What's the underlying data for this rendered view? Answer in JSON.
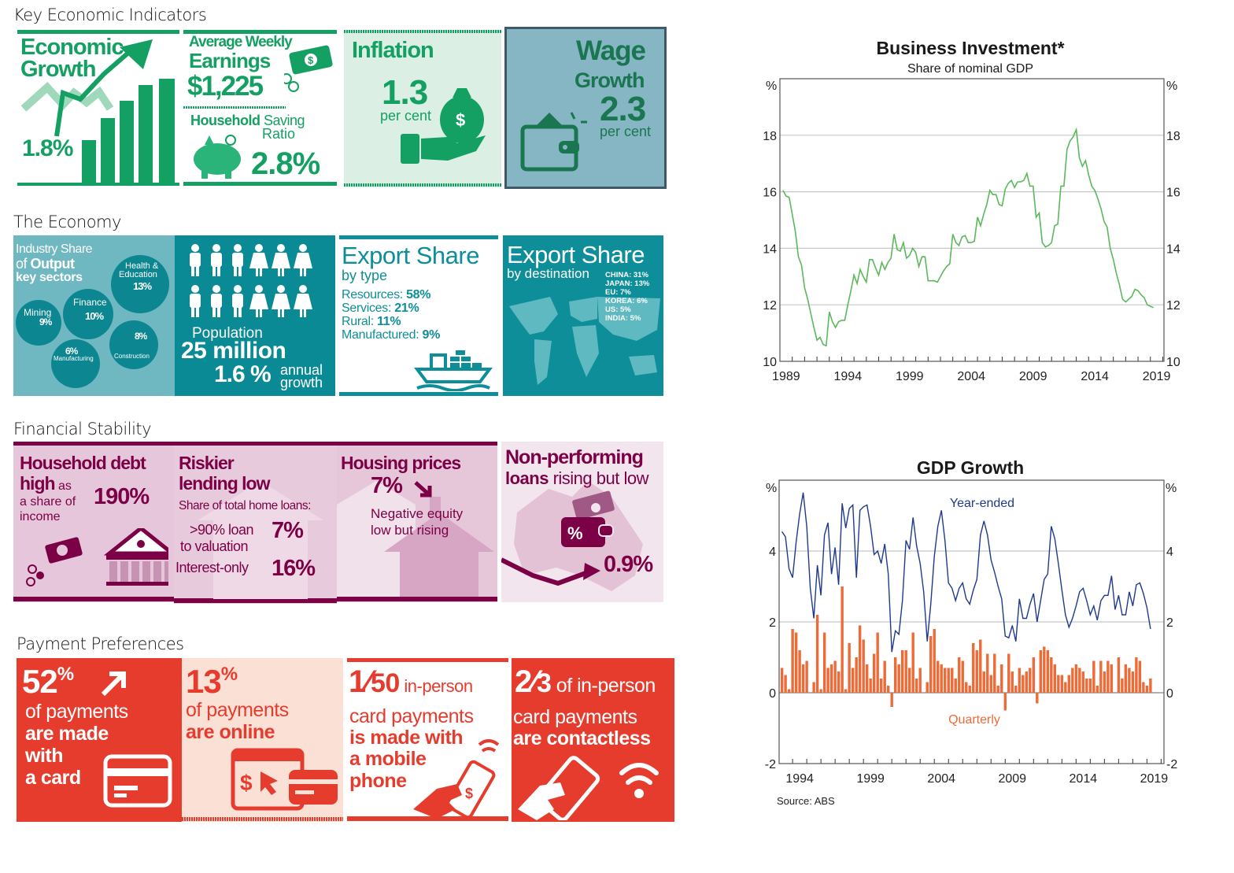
{
  "sections": {
    "key_indicators": "Key Economic Indicators",
    "economy": "The Economy",
    "financial_stability": "Financial Stability",
    "payment_preferences": "Payment Preferences"
  },
  "colors": {
    "green": "#14a062",
    "teal": "#0e8e98",
    "plum": "#7b0046",
    "red": "#e63c2e",
    "investment_line": "#5cb85c",
    "year_ended_line": "#1f3a8a",
    "quarterly_bars": "#ee6a37"
  },
  "key_indicators": {
    "growth": {
      "title1": "Economic",
      "title2": "Growth",
      "value": "1.8%"
    },
    "earnings": {
      "title1": "Average Weekly",
      "title2": "Earnings",
      "value": "$1,225",
      "saving_bold": "Household",
      "saving_rest": "Saving",
      "saving_line2": "Ratio",
      "saving_value": "2.8%"
    },
    "inflation": {
      "title": "Inflation",
      "value": "1.3",
      "unit": "per cent"
    },
    "wage": {
      "title1": "Wage",
      "title2": "Growth",
      "value": "2.3",
      "unit": "per cent"
    }
  },
  "economy": {
    "industry": {
      "line1": "Industry Share",
      "line2_pre": "of ",
      "line2_bold": "Output",
      "line3": "key sectors",
      "sectors": [
        {
          "name": "Health & Education",
          "name1": "Health &",
          "name2": "Education",
          "value": "13%"
        },
        {
          "name": "Finance",
          "value": "10%"
        },
        {
          "name": "Mining",
          "value": "9%"
        },
        {
          "name": "Construction",
          "value": "8%"
        },
        {
          "name": "Manufacturing",
          "value": "6%"
        }
      ]
    },
    "population": {
      "label": "Population",
      "value": "25 million",
      "growth": "1.6 %",
      "growth_label1": "annual",
      "growth_label2": "growth"
    },
    "export_type": {
      "title": "Export Share",
      "subtitle": "by type",
      "items": [
        {
          "label": "Resources: ",
          "value": "58%"
        },
        {
          "label": "Services: ",
          "value": "21%"
        },
        {
          "label": "Rural: ",
          "value": "11%"
        },
        {
          "label": "Manufactured: ",
          "value": "9%"
        }
      ]
    },
    "export_destination": {
      "title": "Export Share",
      "subtitle": "by destination",
      "items": [
        "CHINA: 31%",
        "JAPAN: 13%",
        "EU: 7%",
        "KOREA: 6%",
        "US: 5%",
        "INDIA: 5%"
      ]
    }
  },
  "financial": {
    "debt": {
      "line1": "Household debt",
      "line2_bold": "high",
      "line2_rest": " as",
      "line3": "a share of",
      "line4": "income",
      "value": "190%"
    },
    "lending": {
      "line1": "Riskier",
      "line2": "lending low",
      "sub": "Share of total home loans:",
      "item1_a": ">90% loan",
      "item1_b": "to valuation",
      "item1_value": "7%",
      "item2": "Interest-only",
      "item2_value": "16%"
    },
    "housing": {
      "title": "Housing prices",
      "value": "7%",
      "line1": "Negative equity",
      "line2": "low but rising"
    },
    "npl": {
      "line1": "Non-performing",
      "line2_bold": "loans",
      "line2_rest": " rising but low",
      "value": "0.9%"
    }
  },
  "payments": {
    "card": {
      "value": "52",
      "pct": "%",
      "line1": "of payments",
      "line2": "are made",
      "line3": "with",
      "line4": "a card"
    },
    "online": {
      "value": "13",
      "pct": "%",
      "line1": "of payments",
      "line2": "are online"
    },
    "mobile": {
      "num": "1",
      "den": "50",
      "rest": " in-person",
      "line2": "card payments",
      "line3": "is made with",
      "line4": "a mobile",
      "line5": "phone"
    },
    "contactless": {
      "num": "2",
      "den": "3",
      "rest": " of in-person",
      "line2": "card payments",
      "line3": "are contactless"
    }
  },
  "chart_data": [
    {
      "type": "line",
      "title": "Business Investment*",
      "subtitle": "Share of nominal GDP",
      "ylabel_left": "%",
      "ylabel_right": "%",
      "ylim": [
        10,
        20
      ],
      "xlim": [
        1989,
        2020.1
      ],
      "yticks": [
        10,
        12,
        14,
        16,
        18
      ],
      "xtick_labels": [
        "1989",
        "1994",
        "1999",
        "2004",
        "2009",
        "2014",
        "2019"
      ],
      "grid": true,
      "x": [
        1989.25,
        1989.5,
        1989.75,
        1990,
        1990.25,
        1990.5,
        1990.75,
        1991,
        1991.25,
        1991.5,
        1991.75,
        1992,
        1992.25,
        1992.5,
        1992.75,
        1993,
        1993.25,
        1993.5,
        1993.75,
        1994,
        1994.25,
        1994.5,
        1994.75,
        1995,
        1995.25,
        1995.5,
        1995.75,
        1996,
        1996.25,
        1996.5,
        1996.75,
        1997,
        1997.25,
        1997.5,
        1997.75,
        1998,
        1998.25,
        1998.5,
        1998.75,
        1999,
        1999.25,
        1999.5,
        1999.75,
        2000,
        2000.25,
        2000.5,
        2000.75,
        2001,
        2001.25,
        2001.5,
        2001.75,
        2002,
        2002.25,
        2002.5,
        2002.75,
        2003,
        2003.25,
        2003.5,
        2003.75,
        2004,
        2004.25,
        2004.5,
        2004.75,
        2005,
        2005.25,
        2005.5,
        2005.75,
        2006,
        2006.25,
        2006.5,
        2006.75,
        2007,
        2007.25,
        2007.5,
        2007.75,
        2008,
        2008.25,
        2008.5,
        2008.75,
        2009,
        2009.25,
        2009.5,
        2009.75,
        2010,
        2010.25,
        2010.5,
        2010.75,
        2011,
        2011.25,
        2011.5,
        2011.75,
        2012,
        2012.25,
        2012.5,
        2012.75,
        2013,
        2013.25,
        2013.5,
        2013.75,
        2014,
        2014.25,
        2014.5,
        2014.75,
        2015,
        2015.25,
        2015.5,
        2015.75,
        2016,
        2016.25,
        2016.5,
        2016.75,
        2017,
        2017.25,
        2017.5,
        2017.75,
        2018,
        2018.25,
        2018.5,
        2018.75,
        2019,
        2019.25
      ],
      "values": [
        16.05,
        15.85,
        15.8,
        15.2,
        14.6,
        13.7,
        13.4,
        12.6,
        12.2,
        11.7,
        11.2,
        10.75,
        10.85,
        10.6,
        10.55,
        11.75,
        11.4,
        11.2,
        11.4,
        11.45,
        11.45,
        12.0,
        12.5,
        13.05,
        12.75,
        13.25,
        13.0,
        12.8,
        13.6,
        13.6,
        13.3,
        13.05,
        13.5,
        13.25,
        13.5,
        13.65,
        14.5,
        13.95,
        13.9,
        14.2,
        13.65,
        13.75,
        14.0,
        13.85,
        13.35,
        13.7,
        13.7,
        12.85,
        12.85,
        12.85,
        12.8,
        13.0,
        13.2,
        13.35,
        13.45,
        14.5,
        14.2,
        14.1,
        14.4,
        14.45,
        14.2,
        14.2,
        14.25,
        15.1,
        14.8,
        15.2,
        15.55,
        16.05,
        15.9,
        15.9,
        15.55,
        15.5,
        16.1,
        16.3,
        16.4,
        16.15,
        16.35,
        16.35,
        16.4,
        16.65,
        16.2,
        16.2,
        15.1,
        15.25,
        14.2,
        14.05,
        14.1,
        14.2,
        14.8,
        14.85,
        16.2,
        16.2,
        17.5,
        17.8,
        17.95,
        18.2,
        17.2,
        16.9,
        17.1,
        16.6,
        16.2,
        16.05,
        15.75,
        15.4,
        14.95,
        14.75,
        14.0,
        13.6,
        13.1,
        12.7,
        12.2,
        12.1,
        12.2,
        12.3,
        12.55,
        12.5,
        12.35,
        12.25,
        12.0,
        11.95,
        11.9
      ]
    },
    {
      "type": "bar+line",
      "title": "GDP Growth",
      "ylabel_left": "%",
      "ylabel_right": "%",
      "ylim": [
        -2,
        6
      ],
      "xlim": [
        1993.05,
        2020.2
      ],
      "yticks": [
        -2,
        0,
        2,
        4
      ],
      "xtick_labels": [
        "1994",
        "1999",
        "2004",
        "2009",
        "2014",
        "2019"
      ],
      "grid": true,
      "source": "Source:   ABS",
      "x": [
        1993.25,
        1993.5,
        1993.75,
        1994,
        1994.25,
        1994.5,
        1994.75,
        1995,
        1995.25,
        1995.5,
        1995.75,
        1996,
        1996.25,
        1996.5,
        1996.75,
        1997,
        1997.25,
        1997.5,
        1997.75,
        1998,
        1998.25,
        1998.5,
        1998.75,
        1999,
        1999.25,
        1999.5,
        1999.75,
        2000,
        2000.25,
        2000.5,
        2000.75,
        2001,
        2001.25,
        2001.5,
        2001.75,
        2002,
        2002.25,
        2002.5,
        2002.75,
        2003,
        2003.25,
        2003.5,
        2003.75,
        2004,
        2004.25,
        2004.5,
        2004.75,
        2005,
        2005.25,
        2005.5,
        2005.75,
        2006,
        2006.25,
        2006.5,
        2006.75,
        2007,
        2007.25,
        2007.5,
        2007.75,
        2008,
        2008.25,
        2008.5,
        2008.75,
        2009,
        2009.25,
        2009.5,
        2009.75,
        2010,
        2010.25,
        2010.5,
        2010.75,
        2011,
        2011.25,
        2011.5,
        2011.75,
        2012,
        2012.25,
        2012.5,
        2012.75,
        2013,
        2013.25,
        2013.5,
        2013.75,
        2014,
        2014.25,
        2014.5,
        2014.75,
        2015,
        2015.25,
        2015.5,
        2015.75,
        2016,
        2016.25,
        2016.5,
        2016.75,
        2017,
        2017.25,
        2017.5,
        2017.75,
        2018,
        2018.25,
        2018.5,
        2018.75,
        2019,
        2019.25
      ],
      "series": [
        {
          "name": "Year-ended",
          "type": "line",
          "values": [
            4.55,
            4.4,
            3.5,
            3.25,
            4.25,
            5.05,
            5.65,
            4.7,
            2.95,
            2.1,
            3.6,
            2.75,
            4.45,
            4.8,
            3.35,
            4.1,
            3.05,
            5.35,
            4.65,
            5.2,
            5.3,
            3.25,
            5.15,
            5.25,
            5.3,
            4.7,
            3.9,
            4.0,
            3.65,
            4.2,
            3.35,
            1.15,
            1.75,
            1.65,
            2.6,
            4.3,
            4.05,
            4.95,
            4.15,
            3.65,
            2.85,
            1.45,
            2.5,
            3.85,
            4.7,
            5.15,
            4.3,
            3.1,
            2.95,
            2.6,
            2.95,
            3.1,
            2.65,
            2.5,
            2.9,
            3.2,
            4.45,
            4.85,
            4.45,
            3.75,
            3.4,
            3.0,
            2.65,
            1.6,
            1.55,
            1.9,
            1.45,
            2.65,
            2.1,
            2.1,
            2.5,
            2.8,
            2.0,
            2.6,
            3.2,
            3.35,
            4.7,
            4.35,
            3.65,
            2.9,
            2.2,
            1.85,
            2.1,
            2.45,
            2.85,
            2.95,
            2.6,
            2.2,
            2.45,
            2.05,
            2.6,
            2.75,
            2.75,
            3.3,
            2.35,
            2.75,
            2.2,
            2.2,
            2.85,
            2.45,
            3.05,
            3.1,
            2.8,
            2.4,
            1.8
          ]
        },
        {
          "name": "Quarterly",
          "type": "bar",
          "values": [
            0.7,
            0.5,
            0.1,
            1.8,
            1.7,
            1.2,
            0.8,
            0.9,
            0,
            0.3,
            2.2,
            0.1,
            1.7,
            0.7,
            0.8,
            0.9,
            0.6,
            3.0,
            0.1,
            1.4,
            0.7,
            1.0,
            1.9,
            1.5,
            0.8,
            0.4,
            1.1,
            1.7,
            0.4,
            0.9,
            0.2,
            -0.4,
            1.0,
            0.8,
            1.2,
            1.2,
            0.7,
            1.7,
            0.4,
            0.7,
            0,
            0.3,
            1.6,
            1.8,
            0.9,
            0.8,
            0.7,
            0.7,
            0.7,
            0.4,
            1.0,
            0.9,
            0.3,
            0.2,
            1.4,
            1.2,
            1.5,
            0.6,
            1.1,
            0.5,
            1.1,
            0.2,
            0.8,
            -0.5,
            1.1,
            0.6,
            0.2,
            0.7,
            0.5,
            0.6,
            0.7,
            1.0,
            -0.3,
            1.2,
            1.3,
            1.2,
            1.0,
            0.8,
            0.5,
            0.5,
            0.3,
            0.5,
            0.7,
            0.8,
            0.7,
            0.6,
            0.4,
            0.4,
            0.9,
            0.2,
            0.9,
            0.6,
            0.9,
            0.8,
            0,
            1.0,
            0.4,
            0.8,
            0.7,
            0.6,
            1.0,
            0.9,
            0.3,
            0.2,
            0.4
          ]
        }
      ]
    }
  ]
}
